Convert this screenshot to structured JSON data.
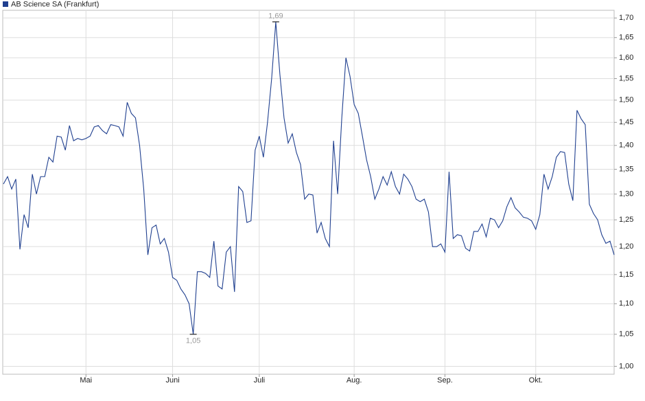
{
  "chart_data": {
    "type": "line",
    "series": [
      {
        "name": "AB Science SA (Frankfurt)",
        "color": "#1f3f8f",
        "values": [
          1.32,
          1.335,
          1.31,
          1.33,
          1.195,
          1.26,
          1.235,
          1.34,
          1.3,
          1.335,
          1.335,
          1.375,
          1.365,
          1.42,
          1.418,
          1.39,
          1.443,
          1.41,
          1.415,
          1.412,
          1.415,
          1.42,
          1.44,
          1.443,
          1.432,
          1.425,
          1.445,
          1.443,
          1.44,
          1.42,
          1.495,
          1.47,
          1.46,
          1.4,
          1.31,
          1.185,
          1.235,
          1.24,
          1.205,
          1.215,
          1.19,
          1.145,
          1.14,
          1.125,
          1.115,
          1.1,
          1.05,
          1.155,
          1.155,
          1.152,
          1.145,
          1.21,
          1.13,
          1.125,
          1.19,
          1.2,
          1.12,
          1.315,
          1.305,
          1.245,
          1.248,
          1.39,
          1.42,
          1.375,
          1.45,
          1.55,
          1.69,
          1.56,
          1.46,
          1.405,
          1.425,
          1.385,
          1.36,
          1.29,
          1.3,
          1.298,
          1.225,
          1.245,
          1.215,
          1.2,
          1.41,
          1.3,
          1.46,
          1.6,
          1.555,
          1.49,
          1.47,
          1.42,
          1.37,
          1.335,
          1.29,
          1.31,
          1.335,
          1.318,
          1.345,
          1.315,
          1.3,
          1.34,
          1.33,
          1.315,
          1.29,
          1.285,
          1.29,
          1.265,
          1.2,
          1.2,
          1.205,
          1.19,
          1.345,
          1.215,
          1.222,
          1.22,
          1.197,
          1.192,
          1.228,
          1.228,
          1.242,
          1.218,
          1.253,
          1.25,
          1.235,
          1.248,
          1.275,
          1.293,
          1.273,
          1.265,
          1.255,
          1.253,
          1.248,
          1.232,
          1.26,
          1.34,
          1.31,
          1.335,
          1.375,
          1.387,
          1.385,
          1.32,
          1.287,
          1.477,
          1.458,
          1.445,
          1.28,
          1.262,
          1.25,
          1.222,
          1.206,
          1.21,
          1.185
        ]
      }
    ],
    "categories": [
      null,
      null,
      null,
      null,
      null,
      null,
      null,
      null,
      null,
      null,
      null,
      null,
      null,
      null,
      null,
      null,
      null,
      null,
      null,
      null,
      "Mai",
      null,
      null,
      null,
      null,
      null,
      null,
      null,
      null,
      null,
      null,
      null,
      null,
      null,
      null,
      null,
      null,
      null,
      null,
      null,
      null,
      "Juni",
      null,
      null,
      null,
      null,
      null,
      null,
      null,
      null,
      null,
      null,
      null,
      null,
      null,
      null,
      null,
      null,
      null,
      null,
      null,
      null,
      "Juli",
      null,
      null,
      null,
      null,
      null,
      null,
      null,
      null,
      null,
      null,
      null,
      null,
      null,
      null,
      null,
      null,
      null,
      null,
      null,
      null,
      null,
      null,
      "Aug.",
      null,
      null,
      null,
      null,
      null,
      null,
      null,
      null,
      null,
      null,
      null,
      null,
      null,
      null,
      null,
      null,
      null,
      null,
      null,
      null,
      null,
      "Sep.",
      null,
      null,
      null,
      null,
      null,
      null,
      null,
      null,
      null,
      null,
      null,
      null,
      null,
      null,
      null,
      null,
      null,
      null,
      null,
      null,
      null,
      "Okt.",
      null,
      null,
      null,
      null,
      null,
      null,
      null,
      null,
      null,
      null,
      null,
      null,
      null,
      null,
      null,
      null,
      null,
      null,
      null
    ],
    "ylim": [
      0.988,
      1.72
    ],
    "yticks": [
      {
        "value": 1.0,
        "label": "1,00"
      },
      {
        "value": 1.05,
        "label": "1,05"
      },
      {
        "value": 1.1,
        "label": "1,10"
      },
      {
        "value": 1.15,
        "label": "1,15"
      },
      {
        "value": 1.2,
        "label": "1,20"
      },
      {
        "value": 1.25,
        "label": "1,25"
      },
      {
        "value": 1.3,
        "label": "1,30"
      },
      {
        "value": 1.35,
        "label": "1,35"
      },
      {
        "value": 1.4,
        "label": "1,40"
      },
      {
        "value": 1.45,
        "label": "1,45"
      },
      {
        "value": 1.5,
        "label": "1,50"
      },
      {
        "value": 1.55,
        "label": "1,55"
      },
      {
        "value": 1.6,
        "label": "1,60"
      },
      {
        "value": 1.65,
        "label": "1,65"
      },
      {
        "value": 1.7,
        "label": "1,70"
      }
    ],
    "log_scale": true,
    "grid": true,
    "legend": "top-left",
    "annotations": [
      {
        "value": 1.69,
        "label": "1,69"
      },
      {
        "value": 1.05,
        "label": "1,05"
      }
    ]
  }
}
